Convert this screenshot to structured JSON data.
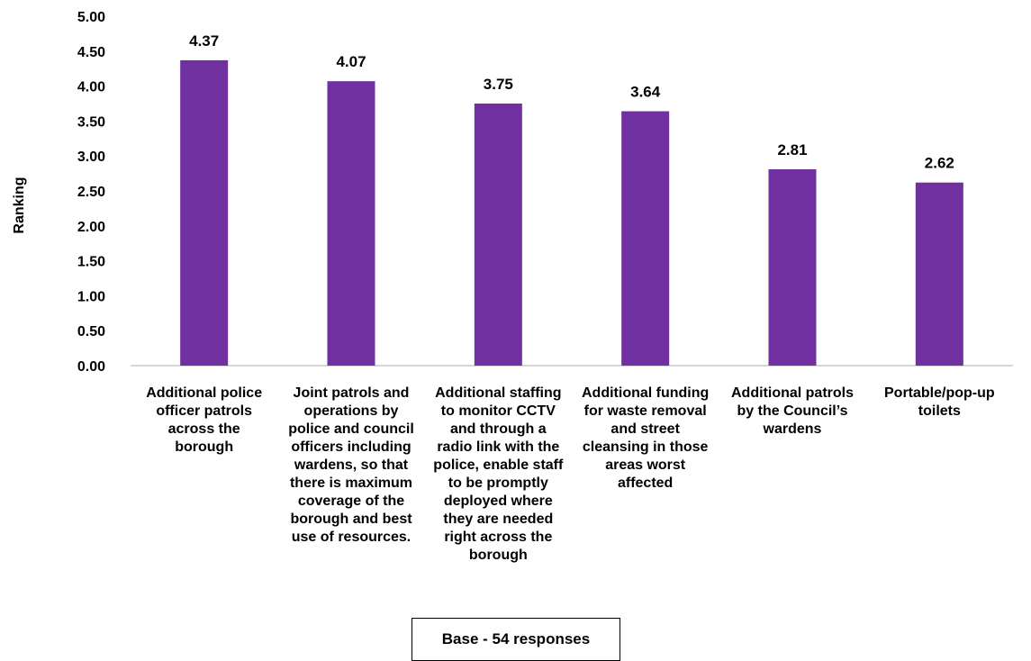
{
  "chart_data": {
    "type": "bar",
    "title": "",
    "xlabel": "",
    "ylabel": "Ranking",
    "ylim": [
      0,
      5
    ],
    "ytick_step": 0.5,
    "grid": false,
    "bar_color": "#7030a0",
    "categories": [
      "Additional police officer patrols across the borough",
      "Joint patrols and operations by police and council officers including wardens, so that there is maximum coverage of the borough and best use of resources.",
      "Additional staffing to monitor CCTV and through a radio link with the police, enable staff to be promptly deployed where they are needed right across the borough",
      "Additional funding for waste removal and street cleansing in those areas worst affected",
      "Additional patrols by the Council’s wardens",
      "Portable/pop-up toilets"
    ],
    "category_label_lines": [
      [
        "Additional police",
        "officer patrols",
        "across the",
        "borough"
      ],
      [
        "Joint patrols and",
        "operations by",
        "police and council",
        "officers including",
        "wardens, so that",
        "there is maximum",
        "coverage of the",
        "borough and best",
        "use of resources."
      ],
      [
        "Additional staffing",
        "to monitor CCTV",
        "and through a",
        "radio link with the",
        "police, enable staff",
        "to be promptly",
        "deployed where",
        "they are needed",
        "right across the",
        "borough"
      ],
      [
        "Additional funding",
        "for waste removal",
        "and street",
        "cleansing in those",
        "areas worst",
        "affected"
      ],
      [
        "Additional patrols",
        "by the Council’s",
        "wardens"
      ],
      [
        "Portable/pop-up",
        "toilets"
      ]
    ],
    "values": [
      4.37,
      4.07,
      3.75,
      3.64,
      2.81,
      2.62
    ],
    "value_labels": [
      "4.37",
      "4.07",
      "3.75",
      "3.64",
      "2.81",
      "2.62"
    ]
  },
  "note": "Base - 54 responses"
}
